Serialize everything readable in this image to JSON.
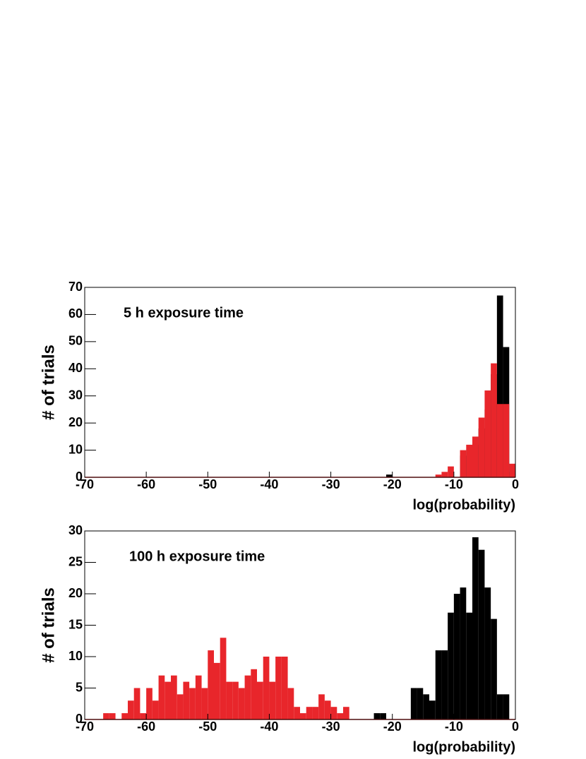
{
  "chart_data": [
    {
      "type": "histogram",
      "annotation": "5 h exposure time",
      "xlabel": "log(probability)",
      "ylabel": "# of trials",
      "bins": [
        -70,
        -69,
        -68,
        -67,
        -66,
        -65,
        -64,
        -63,
        -62,
        -61,
        -60,
        -59,
        -58,
        -57,
        -56,
        -55,
        -54,
        -53,
        -52,
        -51,
        -50,
        -49,
        -48,
        -47,
        -46,
        -45,
        -44,
        -43,
        -42,
        -41,
        -40,
        -39,
        -38,
        -37,
        -36,
        -35,
        -34,
        -33,
        -32,
        -31,
        -30,
        -29,
        -28,
        -27,
        -26,
        -25,
        -24,
        -23,
        -22,
        -21,
        -20,
        -19,
        -18,
        -17,
        -16,
        -15,
        -14,
        -13,
        -12,
        -11,
        -10,
        -9,
        -8,
        -7,
        -6,
        -5,
        -4,
        -3,
        -2,
        -1,
        0
      ],
      "series": [
        {
          "color": "#000000",
          "values": [
            0,
            0,
            0,
            0,
            0,
            0,
            0,
            0,
            0,
            0,
            0,
            0,
            0,
            0,
            0,
            0,
            0,
            0,
            0,
            0,
            0,
            0,
            0,
            0,
            0,
            0,
            0,
            0,
            0,
            0,
            0,
            0,
            0,
            0,
            0,
            0,
            0,
            0,
            0,
            0,
            0,
            0,
            0,
            0,
            0,
            0,
            0,
            0,
            0,
            1,
            0,
            0,
            0,
            0,
            0,
            0,
            0,
            0,
            0,
            0,
            0,
            8,
            10,
            12,
            18,
            25,
            38,
            67,
            48,
            2
          ]
        },
        {
          "color": "#e8262b",
          "values": [
            0,
            0,
            0,
            0,
            0,
            0,
            0,
            0,
            0,
            0,
            0,
            0,
            0,
            0,
            0,
            0,
            0,
            0,
            0,
            0,
            0,
            0,
            0,
            0,
            0,
            0,
            0,
            0,
            0,
            0,
            0,
            0,
            0,
            0,
            0,
            0,
            0,
            0,
            0,
            0,
            0,
            0,
            0,
            0,
            0,
            0,
            0,
            0,
            0,
            0,
            0,
            0,
            0,
            0,
            0,
            0,
            0,
            1,
            2,
            4,
            0,
            10,
            12,
            15,
            22,
            32,
            42,
            27,
            27,
            5
          ]
        }
      ],
      "xlim": [
        -70,
        0
      ],
      "xticks": [
        -70,
        -60,
        -50,
        -40,
        -30,
        -20,
        -10,
        0
      ],
      "ylim": [
        0,
        70
      ],
      "yticks": [
        0,
        10,
        20,
        30,
        40,
        50,
        60,
        70
      ]
    },
    {
      "type": "histogram",
      "annotation": "100 h exposure time",
      "xlabel": "log(probability)",
      "ylabel": "# of trials",
      "bins": [
        -70,
        -69,
        -68,
        -67,
        -66,
        -65,
        -64,
        -63,
        -62,
        -61,
        -60,
        -59,
        -58,
        -57,
        -56,
        -55,
        -54,
        -53,
        -52,
        -51,
        -50,
        -49,
        -48,
        -47,
        -46,
        -45,
        -44,
        -43,
        -42,
        -41,
        -40,
        -39,
        -38,
        -37,
        -36,
        -35,
        -34,
        -33,
        -32,
        -31,
        -30,
        -29,
        -28,
        -27,
        -26,
        -25,
        -24,
        -23,
        -22,
        -21,
        -20,
        -19,
        -18,
        -17,
        -16,
        -15,
        -14,
        -13,
        -12,
        -11,
        -10,
        -9,
        -8,
        -7,
        -6,
        -5,
        -4,
        -3,
        -2,
        -1,
        0
      ],
      "series": [
        {
          "color": "#000000",
          "values": [
            0,
            0,
            0,
            0,
            0,
            0,
            0,
            0,
            0,
            0,
            0,
            0,
            0,
            0,
            0,
            0,
            0,
            0,
            0,
            0,
            0,
            0,
            0,
            0,
            0,
            0,
            0,
            0,
            0,
            0,
            0,
            0,
            0,
            0,
            0,
            0,
            0,
            0,
            0,
            0,
            0,
            0,
            0,
            0,
            0,
            0,
            0,
            1,
            1,
            0,
            0,
            0,
            0,
            5,
            5,
            4,
            3,
            11,
            11,
            17,
            20,
            21,
            17,
            29,
            27,
            21,
            16,
            4,
            4,
            0
          ]
        },
        {
          "color": "#e8262b",
          "values": [
            0,
            0,
            0,
            1,
            1,
            0,
            1,
            3,
            5,
            1,
            5,
            3,
            7,
            6,
            7,
            4,
            6,
            5,
            7,
            5,
            11,
            9,
            13,
            6,
            6,
            5,
            7,
            8,
            6,
            10,
            6,
            10,
            10,
            5,
            2,
            1,
            2,
            2,
            4,
            3,
            2,
            1,
            2,
            0,
            0,
            0,
            0,
            0,
            0,
            0,
            0,
            0,
            0,
            0,
            0,
            0,
            0,
            0,
            0,
            0,
            0,
            0,
            0,
            0,
            0,
            0,
            0,
            0,
            0,
            0
          ]
        }
      ],
      "xlim": [
        -70,
        0
      ],
      "xticks": [
        -70,
        -60,
        -50,
        -40,
        -30,
        -20,
        -10,
        0
      ],
      "ylim": [
        0,
        30
      ],
      "yticks": [
        0,
        5,
        10,
        15,
        20,
        25,
        30
      ]
    }
  ]
}
